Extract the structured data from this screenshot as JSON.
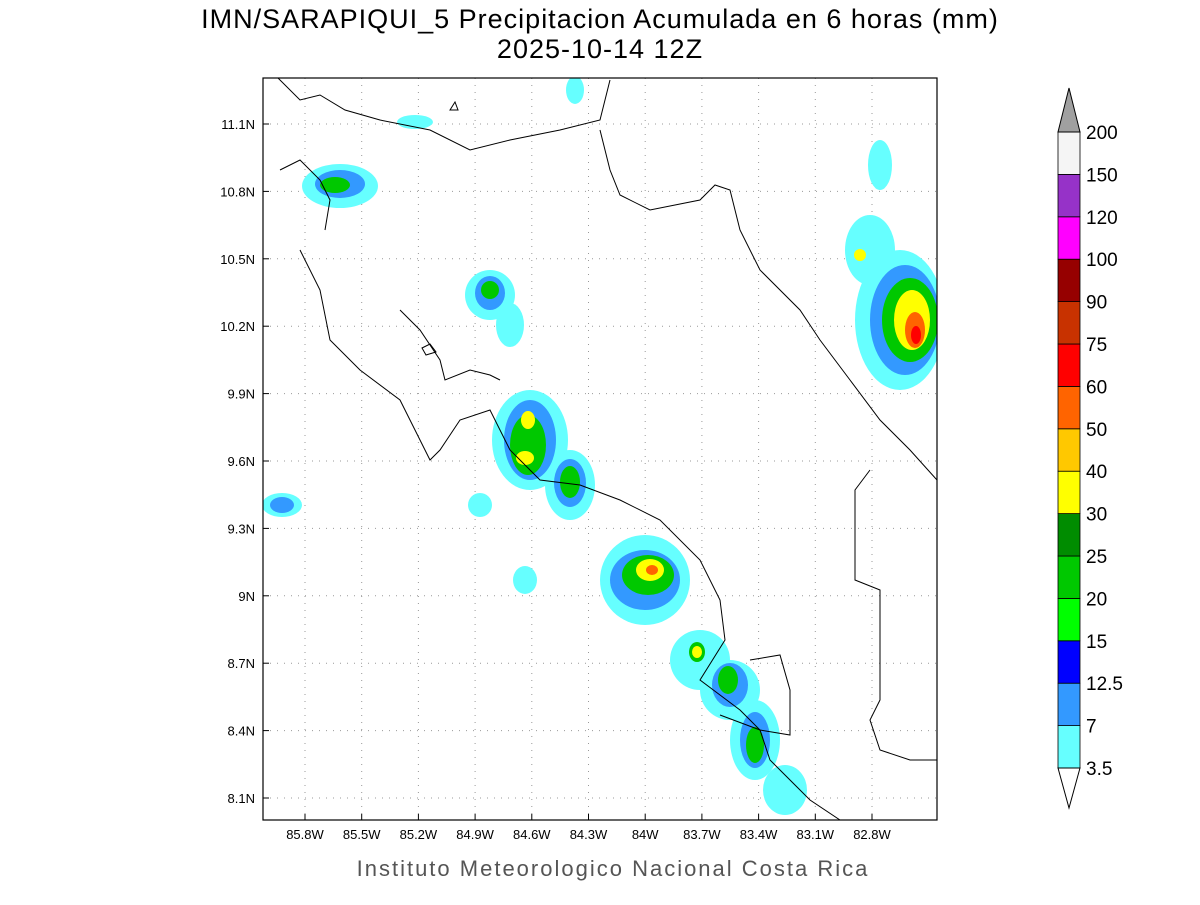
{
  "header": {
    "title": "IMN/SARAPIQUI_5 Precipitacion Acumulada en 6 horas (mm)",
    "subtitle": "2025-10-14 12Z"
  },
  "map": {
    "lat_labels": [
      "11.1N",
      "10.8N",
      "10.5N",
      "10.2N",
      "9.9N",
      "9.6N",
      "9.3N",
      "9N",
      "8.7N",
      "8.4N",
      "8.1N"
    ],
    "lon_labels": [
      "85.8W",
      "85.5W",
      "85.2W",
      "84.9W",
      "84.6W",
      "84.3W",
      "84W",
      "83.7W",
      "83.4W",
      "83.1W",
      "82.8W"
    ]
  },
  "colorbar": {
    "levels": [
      3.5,
      7,
      12.5,
      15,
      20,
      25,
      30,
      40,
      50,
      60,
      75,
      90,
      100,
      120,
      150,
      200
    ],
    "colors": [
      "#66ffff",
      "#3399ff",
      "#0000ff",
      "#00ff00",
      "#00c800",
      "#008c00",
      "#ffff00",
      "#ffc800",
      "#ff6400",
      "#ff0000",
      "#c83200",
      "#960000",
      "#ff00ff",
      "#9632c8",
      "#f5f5f5"
    ]
  },
  "footer": "Instituto Meteorologico Nacional Costa Rica"
}
